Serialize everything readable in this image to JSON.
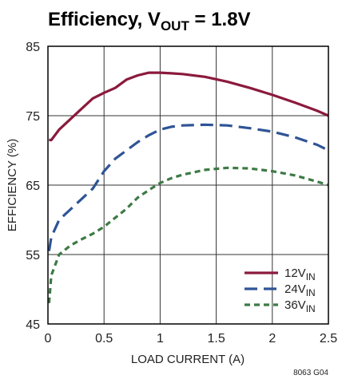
{
  "figure_code": "8063 G04",
  "chart_data": {
    "type": "line",
    "title": {
      "main": "Efficiency, V",
      "sub": "OUT",
      "tail": " = 1.8V"
    },
    "xlabel": "LOAD CURRENT (A)",
    "ylabel": "EFFICIENCY (%)",
    "xlim": [
      0,
      2.5
    ],
    "ylim": [
      45,
      85
    ],
    "xticks": [
      0,
      0.5,
      1,
      1.5,
      2,
      2.5
    ],
    "xtick_labels": [
      "0",
      "0.5",
      "1",
      "1.5",
      "2",
      "2.5"
    ],
    "yticks": [
      45,
      55,
      65,
      75,
      85
    ],
    "ytick_labels": [
      "45",
      "55",
      "65",
      "75",
      "85"
    ],
    "grid": true,
    "legend_position": "bottom-right",
    "series": [
      {
        "name": "12V",
        "name_sub": "IN",
        "color": "#8b1a3c",
        "dash": "solid",
        "x": [
          0.01,
          0.03,
          0.1,
          0.2,
          0.3,
          0.4,
          0.5,
          0.6,
          0.7,
          0.8,
          0.9,
          1.0,
          1.1,
          1.2,
          1.4,
          1.6,
          1.8,
          2.0,
          2.2,
          2.4,
          2.5
        ],
        "y": [
          71.5,
          71.5,
          73.0,
          74.5,
          76.0,
          77.5,
          78.3,
          79.0,
          80.2,
          80.8,
          81.2,
          81.2,
          81.1,
          81.0,
          80.6,
          79.9,
          79.0,
          78.0,
          76.9,
          75.7,
          75.0
        ]
      },
      {
        "name": "24V",
        "name_sub": "IN",
        "color": "#2f5496",
        "dash": "long",
        "x": [
          0.01,
          0.03,
          0.1,
          0.2,
          0.3,
          0.4,
          0.5,
          0.6,
          0.7,
          0.8,
          0.9,
          1.0,
          1.1,
          1.2,
          1.4,
          1.6,
          1.8,
          2.0,
          2.2,
          2.4,
          2.5
        ],
        "y": [
          55.5,
          57.5,
          60.0,
          61.5,
          63.0,
          64.5,
          67.0,
          68.8,
          70.0,
          71.2,
          72.2,
          73.0,
          73.4,
          73.6,
          73.7,
          73.6,
          73.2,
          72.7,
          71.9,
          70.8,
          70.0
        ]
      },
      {
        "name": "36V",
        "name_sub": "IN",
        "color": "#3d7a45",
        "dash": "short",
        "x": [
          0.01,
          0.03,
          0.1,
          0.2,
          0.3,
          0.4,
          0.5,
          0.6,
          0.7,
          0.8,
          0.9,
          1.0,
          1.1,
          1.2,
          1.4,
          1.6,
          1.8,
          2.0,
          2.2,
          2.4,
          2.5
        ],
        "y": [
          48.0,
          52.0,
          55.0,
          56.3,
          57.2,
          58.0,
          59.0,
          60.3,
          61.6,
          63.2,
          64.3,
          65.3,
          66.0,
          66.5,
          67.2,
          67.5,
          67.4,
          67.0,
          66.4,
          65.5,
          65.0
        ]
      }
    ]
  }
}
